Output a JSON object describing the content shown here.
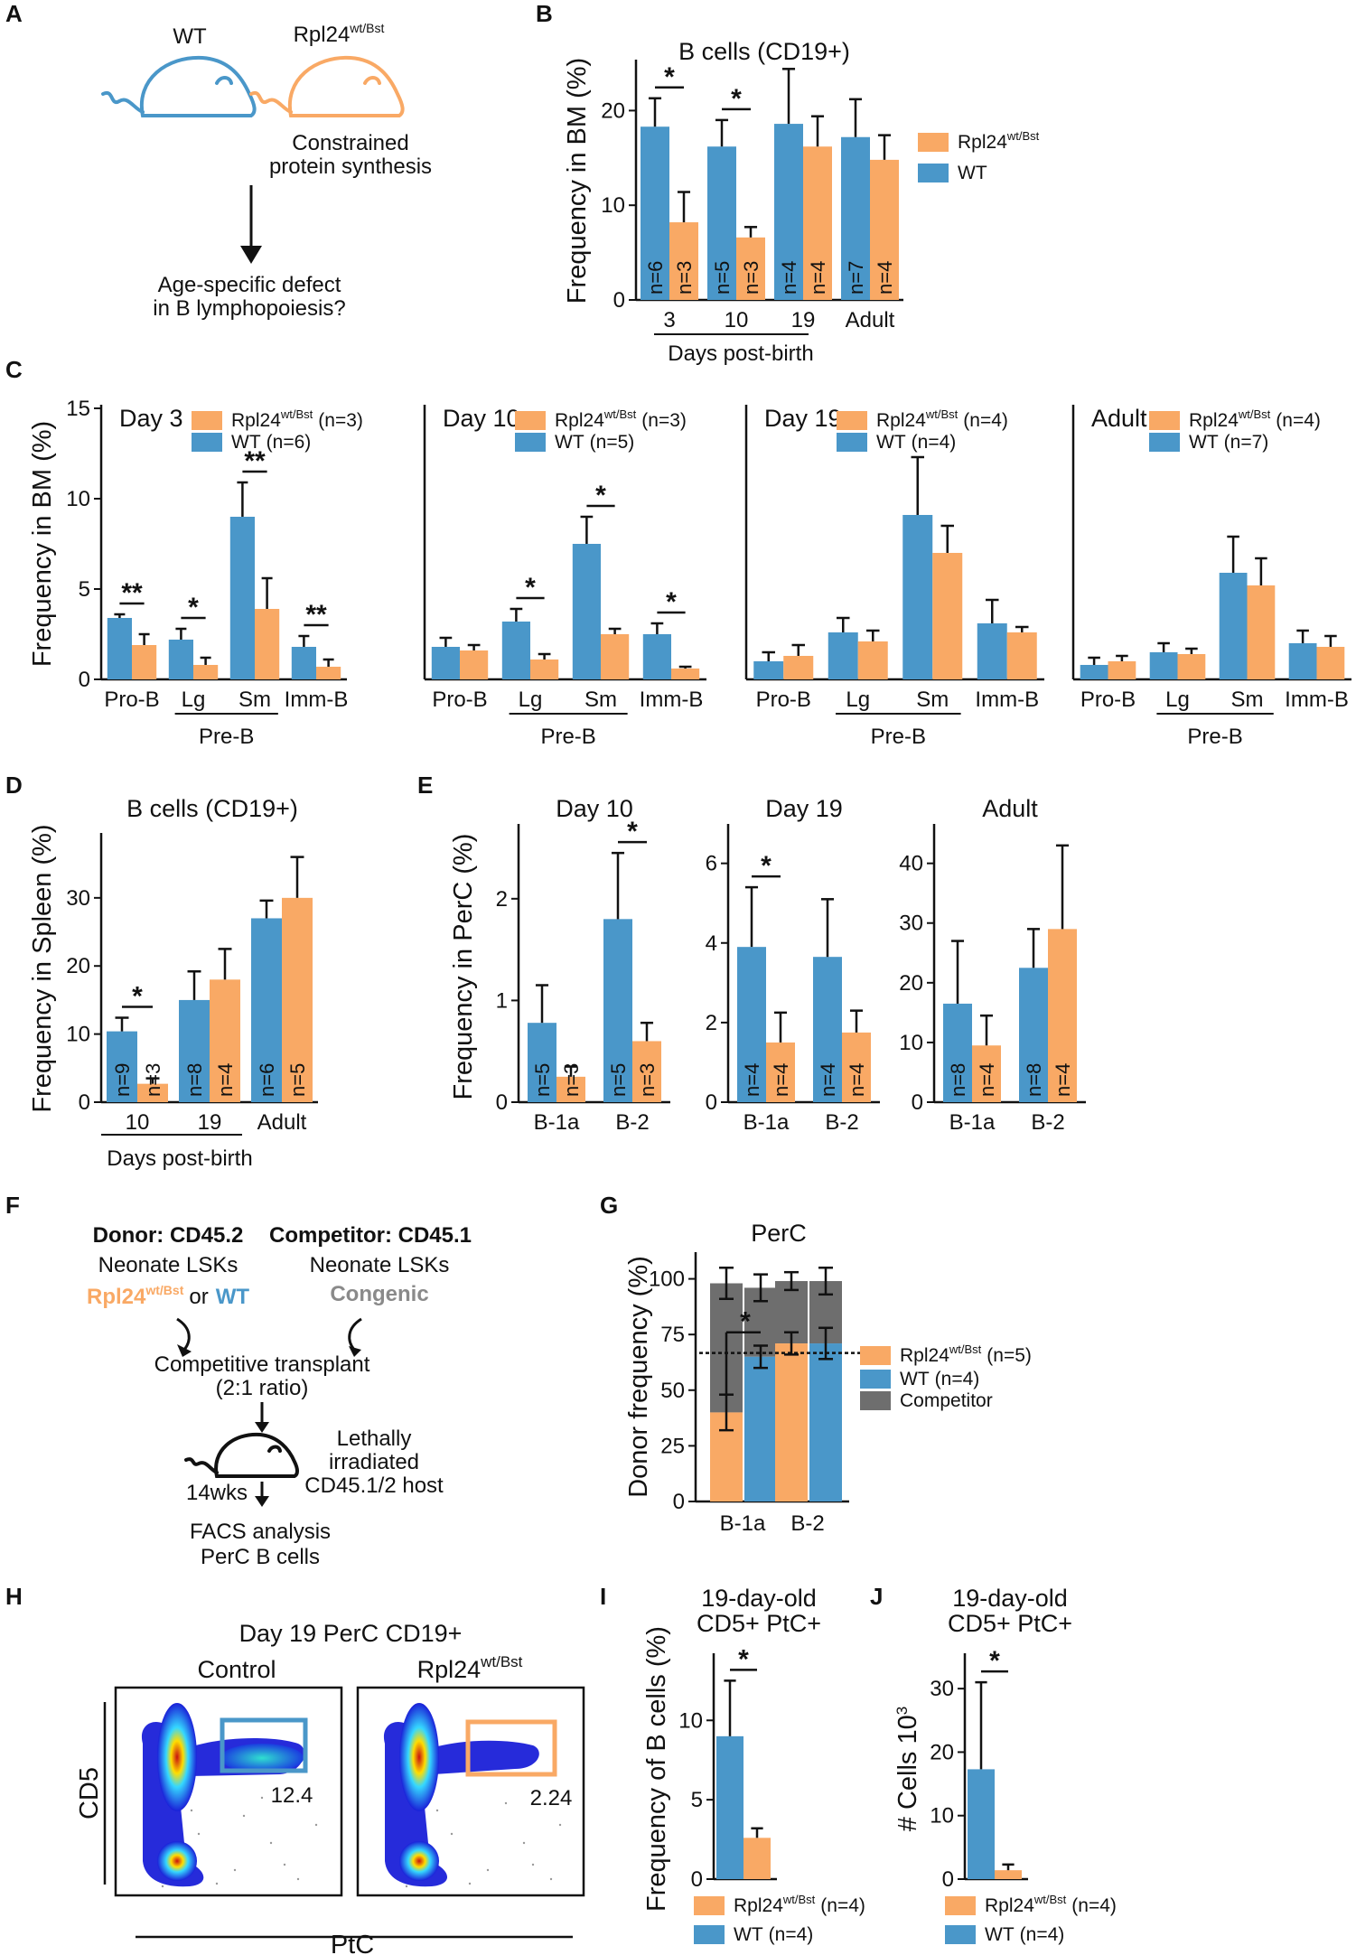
{
  "colors": {
    "wt": "#4a97c9",
    "mut": "#f9a965",
    "competitor": "#6e6e6e",
    "axis": "#111111"
  },
  "panel_letters": [
    "A",
    "B",
    "C",
    "D",
    "E",
    "F",
    "G",
    "H",
    "I",
    "J"
  ],
  "panelA": {
    "wt_label": "WT",
    "mut_label": "Rpl24",
    "mut_sup": "wt/Bst",
    "mut_note_1": "Constrained",
    "mut_note_2": "protein synthesis",
    "question_1": "Age-specific defect",
    "question_2": "in B lymphopoiesis?"
  },
  "panelF": {
    "donor_title": "Donor: CD45.2",
    "competitor_title": "Competitor: CD45.1",
    "donor_sub": "Neonate LSKs",
    "competitor_sub": "Neonate LSKs",
    "donor_geno_mut": "Rpl24",
    "donor_geno_sup": "wt/Bst",
    "donor_geno_or": "or",
    "donor_geno_wt": "WT",
    "competitor_geno": "Congenic",
    "step1_a": "Competitive transplant",
    "step1_b": "(2:1 ratio)",
    "host_a": "Lethally",
    "host_b": "irradiated",
    "host_c": "CD45.1/2 host",
    "time": "14wks",
    "step2_a": "FACS analysis",
    "step2_b": "PerC B cells"
  },
  "panelH": {
    "title": "Day 19 PerC CD19+",
    "control_label": "Control",
    "mut_label": "Rpl24",
    "mut_sup": "wt/Bst",
    "control_gate": 12.4,
    "mut_gate": 2.24,
    "xlabel": "PtC",
    "ylabel": "CD5"
  },
  "chart_data": [
    {
      "id": "B",
      "type": "bar",
      "title": "B cells (CD19+)",
      "ylabel": "Frequency in BM (%)",
      "xlabel": "Days post-birth",
      "ylim": [
        0,
        25
      ],
      "yticks": [
        0,
        10,
        20
      ],
      "categories": [
        "3",
        "10",
        "19",
        "Adult"
      ],
      "legend": [
        {
          "name": "Rpl24",
          "sup": "wt/Bst"
        },
        {
          "name": "WT",
          "sup": ""
        }
      ],
      "series": [
        {
          "name": "WT",
          "values": [
            18.3,
            16.2,
            18.6,
            17.2
          ],
          "errors": [
            3.0,
            2.8,
            5.8,
            4.0
          ],
          "n": [
            "n=6",
            "n=5",
            "n=4",
            "n=7"
          ]
        },
        {
          "name": "Rpl24 wt/Bst",
          "values": [
            8.2,
            6.6,
            16.2,
            14.8
          ],
          "errors": [
            3.2,
            1.1,
            3.2,
            2.6
          ],
          "n": [
            "n=3",
            "n=3",
            "n=4",
            "n=4"
          ]
        }
      ],
      "significance": [
        {
          "category": "3",
          "mark": "*"
        },
        {
          "category": "10",
          "mark": "*"
        }
      ]
    },
    {
      "id": "C-day3",
      "type": "bar",
      "title": "Day 3",
      "ylabel": "Frequency in BM (%)",
      "xlabel": "Pre-B",
      "ylim": [
        0,
        15
      ],
      "yticks": [
        0,
        5,
        10,
        15
      ],
      "categories": [
        "Pro-B",
        "Lg",
        "Sm",
        "Imm-B"
      ],
      "legend": [
        {
          "name": "Rpl24",
          "sup": "wt/Bst",
          "n": "(n=3)"
        },
        {
          "name": "WT",
          "sup": "",
          "n": "(n=6)"
        }
      ],
      "series": [
        {
          "name": "WT",
          "values": [
            3.4,
            2.2,
            9.0,
            1.8
          ],
          "errors": [
            0.2,
            0.6,
            1.9,
            0.6
          ]
        },
        {
          "name": "Rpl24 wt/Bst",
          "values": [
            1.9,
            0.8,
            3.9,
            0.7
          ],
          "errors": [
            0.6,
            0.4,
            1.7,
            0.4
          ]
        }
      ],
      "significance": [
        {
          "category": "Pro-B",
          "mark": "**"
        },
        {
          "category": "Lg",
          "mark": "*"
        },
        {
          "category": "Sm",
          "mark": "**"
        },
        {
          "category": "Imm-B",
          "mark": "**"
        }
      ]
    },
    {
      "id": "C-day10",
      "type": "bar",
      "title": "Day 10",
      "xlabel": "Pre-B",
      "ylim": [
        0,
        15
      ],
      "categories": [
        "Pro-B",
        "Lg",
        "Sm",
        "Imm-B"
      ],
      "legend": [
        {
          "name": "Rpl24",
          "sup": "wt/Bst",
          "n": "(n=3)"
        },
        {
          "name": "WT",
          "sup": "",
          "n": "(n=5)"
        }
      ],
      "series": [
        {
          "name": "WT",
          "values": [
            1.8,
            3.2,
            7.5,
            2.5
          ],
          "errors": [
            0.5,
            0.7,
            1.5,
            0.6
          ]
        },
        {
          "name": "Rpl24 wt/Bst",
          "values": [
            1.6,
            1.1,
            2.5,
            0.6
          ],
          "errors": [
            0.3,
            0.3,
            0.3,
            0.1
          ]
        }
      ],
      "significance": [
        {
          "category": "Lg",
          "mark": "*"
        },
        {
          "category": "Sm",
          "mark": "*"
        },
        {
          "category": "Imm-B",
          "mark": "*"
        }
      ]
    },
    {
      "id": "C-day19",
      "type": "bar",
      "title": "Day 19",
      "xlabel": "Pre-B",
      "ylim": [
        0,
        15
      ],
      "categories": [
        "Pro-B",
        "Lg",
        "Sm",
        "Imm-B"
      ],
      "legend": [
        {
          "name": "Rpl24",
          "sup": "wt/Bst",
          "n": "(n=4)"
        },
        {
          "name": "WT",
          "sup": "",
          "n": "(n=4)"
        }
      ],
      "series": [
        {
          "name": "WT",
          "values": [
            1.0,
            2.6,
            9.1,
            3.1
          ],
          "errors": [
            0.5,
            0.8,
            3.2,
            1.3
          ]
        },
        {
          "name": "Rpl24 wt/Bst",
          "values": [
            1.3,
            2.1,
            7.0,
            2.6
          ],
          "errors": [
            0.6,
            0.6,
            1.5,
            0.3
          ]
        }
      ],
      "significance": []
    },
    {
      "id": "C-adult",
      "type": "bar",
      "title": "Adult",
      "xlabel": "Pre-B",
      "ylim": [
        0,
        15
      ],
      "categories": [
        "Pro-B",
        "Lg",
        "Sm",
        "Imm-B"
      ],
      "legend": [
        {
          "name": "Rpl24",
          "sup": "wt/Bst",
          "n": "(n=4)"
        },
        {
          "name": "WT",
          "sup": "",
          "n": "(n=7)"
        }
      ],
      "series": [
        {
          "name": "WT",
          "values": [
            0.8,
            1.5,
            5.9,
            2.0
          ],
          "errors": [
            0.4,
            0.5,
            2.0,
            0.7
          ]
        },
        {
          "name": "Rpl24 wt/Bst",
          "values": [
            1.0,
            1.4,
            5.2,
            1.8
          ],
          "errors": [
            0.3,
            0.3,
            1.5,
            0.6
          ]
        }
      ],
      "significance": []
    },
    {
      "id": "D",
      "type": "bar",
      "title": "B cells (CD19+)",
      "ylabel": "Frequency in Spleen (%)",
      "xlabel": "Days post-birth",
      "ylim": [
        0,
        39
      ],
      "yticks": [
        0,
        10,
        20,
        30
      ],
      "categories": [
        "10",
        "19",
        "Adult"
      ],
      "series": [
        {
          "name": "WT",
          "values": [
            10.4,
            15.0,
            27.0
          ],
          "errors": [
            2.0,
            4.2,
            2.6
          ],
          "n": [
            "n=9",
            "n=8",
            "n=6"
          ]
        },
        {
          "name": "Rpl24 wt/Bst",
          "values": [
            2.7,
            18.0,
            30.0
          ],
          "errors": [
            0.8,
            4.5,
            6.0
          ],
          "n": [
            "n=3",
            "n=4",
            "n=5"
          ]
        }
      ],
      "significance": [
        {
          "category": "10",
          "mark": "*"
        }
      ]
    },
    {
      "id": "E-day10",
      "type": "bar",
      "title": "Day 10",
      "ylabel": "Frequency in PerC (%)",
      "ylim": [
        0,
        2.7
      ],
      "yticks": [
        0,
        1,
        2
      ],
      "categories": [
        "B-1a",
        "B-2"
      ],
      "series": [
        {
          "name": "WT",
          "values": [
            0.78,
            1.8
          ],
          "errors": [
            0.37,
            0.65
          ],
          "n": [
            "n=5",
            "n=5"
          ]
        },
        {
          "name": "Rpl24 wt/Bst",
          "values": [
            0.25,
            0.6
          ],
          "errors": [
            0.1,
            0.18
          ],
          "n": [
            "n=3",
            "n=3"
          ]
        }
      ],
      "significance": [
        {
          "category": "B-2",
          "mark": "*"
        }
      ]
    },
    {
      "id": "E-day19",
      "type": "bar",
      "title": "Day 19",
      "ylim": [
        0,
        6.9
      ],
      "yticks": [
        0,
        2,
        4,
        6
      ],
      "categories": [
        "B-1a",
        "B-2"
      ],
      "series": [
        {
          "name": "WT",
          "values": [
            3.9,
            3.65
          ],
          "errors": [
            1.5,
            1.45
          ],
          "n": [
            "n=4",
            "n=4"
          ]
        },
        {
          "name": "Rpl24 wt/Bst",
          "values": [
            1.5,
            1.75
          ],
          "errors": [
            0.75,
            0.55
          ],
          "n": [
            "n=4",
            "n=4"
          ]
        }
      ],
      "significance": [
        {
          "category": "B-1a",
          "mark": "*"
        }
      ]
    },
    {
      "id": "E-adult",
      "type": "bar",
      "title": "Adult",
      "ylim": [
        0,
        46
      ],
      "yticks": [
        0,
        10,
        20,
        30,
        40
      ],
      "categories": [
        "B-1a",
        "B-2"
      ],
      "series": [
        {
          "name": "WT",
          "values": [
            16.5,
            22.5
          ],
          "errors": [
            10.5,
            6.5
          ],
          "n": [
            "n=8",
            "n=8"
          ]
        },
        {
          "name": "Rpl24 wt/Bst",
          "values": [
            9.5,
            29.0
          ],
          "errors": [
            5.0,
            14.0
          ],
          "n": [
            "n=4",
            "n=4"
          ]
        }
      ],
      "significance": []
    },
    {
      "id": "G",
      "type": "bar",
      "title": "PerC",
      "ylabel": "Donor frequency (%)",
      "ylim": [
        0,
        112
      ],
      "yticks": [
        0,
        25,
        50,
        75,
        100
      ],
      "categories": [
        "B-1a",
        "B-2"
      ],
      "reference_line": 66.7,
      "legend": [
        {
          "name": "Rpl24",
          "sup": "wt/Bst",
          "n": "(n=5)"
        },
        {
          "name": "WT",
          "sup": "",
          "n": "(n=4)"
        },
        {
          "name": "Competitor",
          "sup": "",
          "n": ""
        }
      ],
      "series": [
        {
          "name": "Rpl24 wt/Bst",
          "values": [
            40,
            71
          ],
          "errors": [
            8,
            5
          ],
          "total": [
            98,
            99
          ],
          "total_errors": [
            7,
            4
          ]
        },
        {
          "name": "WT",
          "values": [
            65,
            71
          ],
          "errors": [
            5,
            7
          ],
          "total": [
            96,
            99
          ],
          "total_errors": [
            6,
            6
          ]
        }
      ],
      "significance": [
        {
          "category": "B-1a",
          "mark": "*"
        }
      ]
    },
    {
      "id": "I",
      "type": "bar",
      "title": "19-day-old",
      "subtitle": "CD5+ PtC+",
      "ylabel": "Frequency of B cells (%)",
      "ylim": [
        0,
        14
      ],
      "yticks": [
        0,
        5,
        10
      ],
      "categories": [
        ""
      ],
      "legend": [
        {
          "name": "Rpl24",
          "sup": "wt/Bst",
          "n": "(n=4)"
        },
        {
          "name": "WT",
          "sup": "",
          "n": "(n=4)"
        }
      ],
      "series": [
        {
          "name": "WT",
          "values": [
            9.0
          ],
          "errors": [
            3.5
          ]
        },
        {
          "name": "Rpl24 wt/Bst",
          "values": [
            2.6
          ],
          "errors": [
            0.6
          ]
        }
      ],
      "significance": [
        {
          "category": "",
          "mark": "*"
        }
      ]
    },
    {
      "id": "J",
      "type": "bar",
      "title": "19-day-old",
      "subtitle": "CD5+ PtC+",
      "ylabel": "# Cells 10",
      "ylabel_sup": "3",
      "ylim": [
        0,
        35
      ],
      "yticks": [
        0,
        10,
        20,
        30
      ],
      "categories": [
        ""
      ],
      "legend": [
        {
          "name": "Rpl24",
          "sup": "wt/Bst",
          "n": "(n=4)"
        },
        {
          "name": "WT",
          "sup": "",
          "n": "(n=4)"
        }
      ],
      "series": [
        {
          "name": "WT",
          "values": [
            17.3
          ],
          "errors": [
            13.7
          ]
        },
        {
          "name": "Rpl24 wt/Bst",
          "values": [
            1.4
          ],
          "errors": [
            0.9
          ]
        }
      ],
      "significance": [
        {
          "category": "",
          "mark": "*"
        }
      ]
    }
  ]
}
